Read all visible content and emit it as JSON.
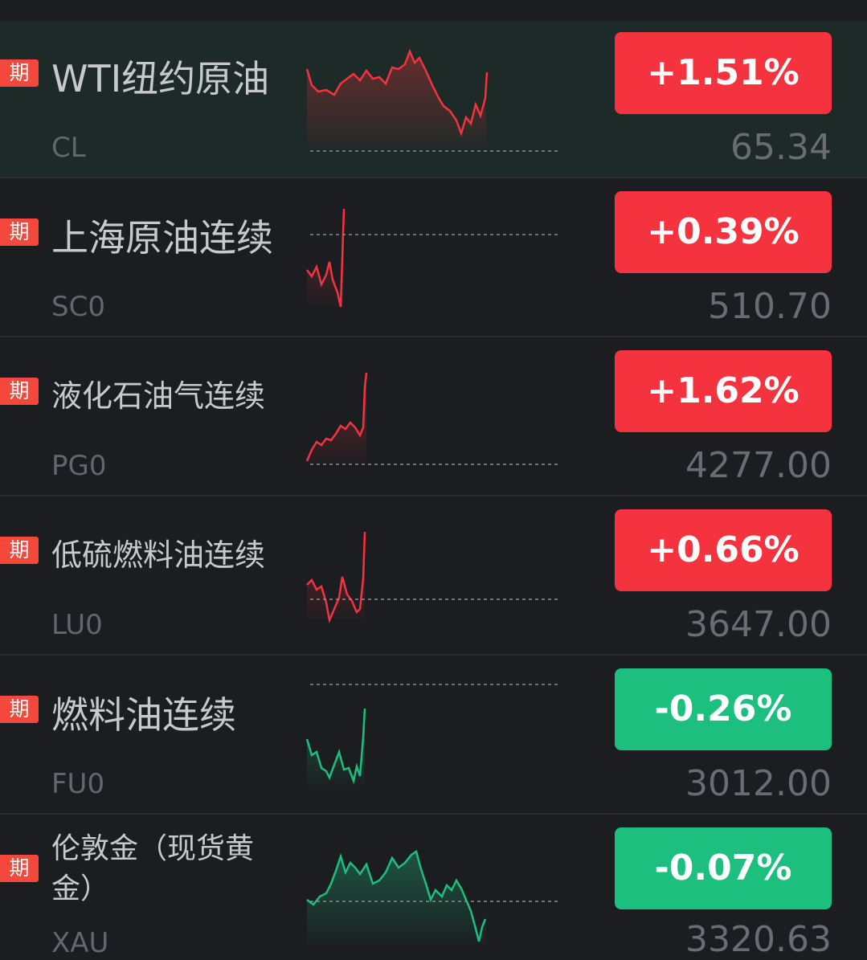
{
  "colors": {
    "up": "#f5333f",
    "down": "#1dbf7f",
    "badge": "#f4483d"
  },
  "rows": [
    {
      "badge": "期",
      "name": "WTI纽约原油",
      "code": "CL",
      "change": "+1.51%",
      "price": "65.34",
      "direction": "up",
      "highlight": true
    },
    {
      "badge": "期",
      "name": "上海原油连续",
      "code": "SC0",
      "change": "+0.39%",
      "price": "510.70",
      "direction": "up",
      "highlight": false
    },
    {
      "badge": "期",
      "name": "液化石油气连续",
      "code": "PG0",
      "change": "+1.62%",
      "price": "4277.00",
      "direction": "up",
      "highlight": false
    },
    {
      "badge": "期",
      "name": "低硫燃料油连续",
      "code": "LU0",
      "change": "+0.66%",
      "price": "3647.00",
      "direction": "up",
      "highlight": false
    },
    {
      "badge": "期",
      "name": "燃料油连续",
      "code": "FU0",
      "change": "-0.26%",
      "price": "3012.00",
      "direction": "down",
      "highlight": false
    },
    {
      "badge": "期",
      "name": "伦敦金（现货黄金）",
      "code": "XAU",
      "change": "-0.07%",
      "price": "3320.63",
      "direction": "down",
      "highlight": false
    }
  ]
}
